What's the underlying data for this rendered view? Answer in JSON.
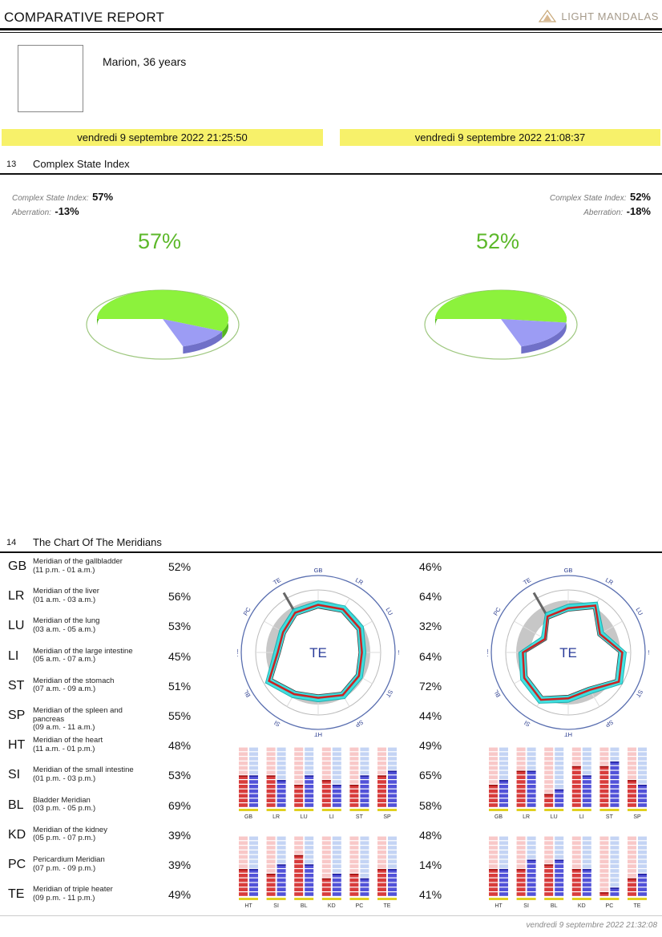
{
  "header": {
    "title": "COMPARATIVE REPORT",
    "brand": "LIGHT MANDALAS"
  },
  "person": {
    "name": "Marion, 36 years"
  },
  "dates": {
    "left": "vendredi 9 septembre 2022 21:25:50",
    "right": "vendredi 9 septembre 2022 21:08:37"
  },
  "section13": {
    "number": "13",
    "title": "Complex State Index"
  },
  "csi": {
    "label": "Complex State Index:",
    "aberration_label": "Aberration:",
    "left": {
      "index": "57%",
      "aberration": "-13%",
      "big": "57%"
    },
    "right": {
      "index": "52%",
      "aberration": "-18%",
      "big": "52%"
    }
  },
  "section14": {
    "number": "14",
    "title": "The Chart Of The Meridians"
  },
  "meridians": [
    {
      "code": "GB",
      "name": "Meridian of the gallbladder",
      "time": "(11 p.m. - 01 a.m.)",
      "left": "52%",
      "right": "46%"
    },
    {
      "code": "LR",
      "name": "Meridian of the liver",
      "time": "(01 a.m. - 03 a.m.)",
      "left": "56%",
      "right": "64%"
    },
    {
      "code": "LU",
      "name": "Meridian of the lung",
      "time": "(03 a.m. - 05 a.m.)",
      "left": "53%",
      "right": "32%"
    },
    {
      "code": "LI",
      "name": "Meridian of the large intestine",
      "time": "(05 a.m. - 07 a.m.)",
      "left": "45%",
      "right": "64%"
    },
    {
      "code": "ST",
      "name": "Meridian of the stomach",
      "time": "(07 a.m. - 09 a.m.)",
      "left": "51%",
      "right": "72%"
    },
    {
      "code": "SP",
      "name": "Meridian of the spleen and pancreas",
      "time": "(09 a.m. - 11 a.m.)",
      "left": "55%",
      "right": "44%"
    },
    {
      "code": "HT",
      "name": "Meridian of the heart",
      "time": "(11 a.m. - 01 p.m.)",
      "left": "48%",
      "right": "49%"
    },
    {
      "code": "SI",
      "name": "Meridian of the small intestine",
      "time": "(01 p.m. - 03 p.m.)",
      "left": "53%",
      "right": "65%"
    },
    {
      "code": "BL",
      "name": "Bladder Meridian",
      "time": "(03 p.m. - 05 p.m.)",
      "left": "69%",
      "right": "58%"
    },
    {
      "code": "KD",
      "name": "Meridian of the kidney",
      "time": "(05 p.m. - 07 p.m.)",
      "left": "39%",
      "right": "48%"
    },
    {
      "code": "PC",
      "name": "Pericardium Meridian",
      "time": "(07 p.m. - 09 p.m.)",
      "left": "39%",
      "right": "14%"
    },
    {
      "code": "TE",
      "name": "Meridian of triple heater",
      "time": "(09 p.m. - 11 p.m.)",
      "left": "49%",
      "right": "41%"
    }
  ],
  "chart_data": [
    {
      "type": "pie",
      "categories": [
        "index",
        "aberration"
      ],
      "values": [
        57,
        13
      ]
    },
    {
      "type": "pie",
      "categories": [
        "index",
        "aberration"
      ],
      "values": [
        52,
        18
      ]
    },
    {
      "type": "radar",
      "center_label": "TE",
      "axes": [
        "GB",
        "LR",
        "LU",
        "LI",
        "ST",
        "SP",
        "HT",
        "SI",
        "BL",
        "KD",
        "PC",
        "TE"
      ],
      "values": [
        52,
        56,
        53,
        45,
        51,
        55,
        48,
        53,
        69,
        39,
        39,
        49
      ]
    },
    {
      "type": "radar",
      "center_label": "TE",
      "axes": [
        "GB",
        "LR",
        "LU",
        "LI",
        "ST",
        "SP",
        "HT",
        "SI",
        "BL",
        "KD",
        "PC",
        "TE"
      ],
      "values": [
        46,
        64,
        32,
        64,
        72,
        44,
        49,
        65,
        58,
        48,
        14,
        41
      ]
    },
    {
      "type": "bar",
      "categories": [
        "GB",
        "LR",
        "LU",
        "LI",
        "ST",
        "SP",
        "HT",
        "SI",
        "BL",
        "KD",
        "PC",
        "TE"
      ],
      "series": [
        {
          "values": [
            52,
            56,
            42,
            45,
            40,
            55,
            48,
            40,
            66,
            30,
            40,
            49
          ]
        },
        {
          "values": [
            55,
            45,
            53,
            40,
            51,
            62,
            45,
            53,
            55,
            39,
            30,
            45
          ]
        }
      ],
      "ylim": [
        0,
        100
      ]
    },
    {
      "type": "bar",
      "categories": [
        "GB",
        "LR",
        "LU",
        "LI",
        "ST",
        "SP",
        "HT",
        "SI",
        "BL",
        "KD",
        "PC",
        "TE"
      ],
      "series": [
        {
          "values": [
            40,
            64,
            22,
            72,
            72,
            44,
            45,
            45,
            55,
            48,
            8,
            30
          ]
        },
        {
          "values": [
            46,
            64,
            32,
            56,
            76,
            38,
            49,
            65,
            58,
            48,
            14,
            41
          ]
        }
      ],
      "ylim": [
        0,
        100
      ]
    }
  ]
}
